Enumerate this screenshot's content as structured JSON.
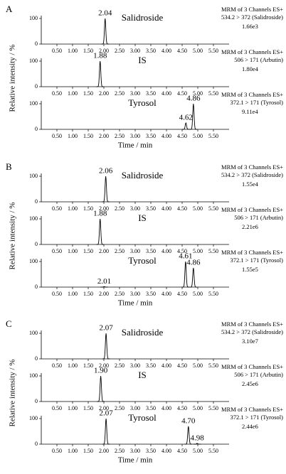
{
  "chart_data": [
    {
      "type": "chromatogram",
      "label": "A",
      "ylabel": "Relative intensity / %",
      "xlabel": "Time / min",
      "xlim": [
        0,
        6
      ],
      "xticks": [
        {
          "value": 0.5,
          "label": "0.50"
        },
        {
          "value": 1,
          "label": "1.00"
        },
        {
          "value": 1.5,
          "label": "1.50"
        },
        {
          "value": 2,
          "label": "2.00"
        },
        {
          "value": 2.5,
          "label": "2.50"
        },
        {
          "value": 3,
          "label": "3.00"
        },
        {
          "value": 3.5,
          "label": "3.50"
        },
        {
          "value": 4,
          "label": "4.00"
        },
        {
          "value": 4.5,
          "label": "4.50"
        },
        {
          "value": 5,
          "label": "5.00"
        },
        {
          "value": 5.5,
          "label": "5.50"
        }
      ],
      "traces": [
        {
          "name": "Salidroside",
          "info": [
            "MRM of 3 Channels ES+",
            "534.2 > 372 (Salidroside)",
            "1.66e3"
          ],
          "ylim": [
            0,
            100
          ],
          "yticks": [
            0,
            100
          ],
          "x": [
            {
              "value": 2.04,
              "label": "2.04"
            }
          ],
          "values": [
            100
          ]
        },
        {
          "name": "IS",
          "info": [
            "MRM of 3 Channels ES+",
            "506 > 171 (Arbutin)",
            "1.80e4"
          ],
          "ylim": [
            0,
            100
          ],
          "yticks": [
            0,
            100
          ],
          "x": [
            {
              "value": 1.88,
              "label": "1.88"
            }
          ],
          "values": [
            100
          ]
        },
        {
          "name": "Tyrosol",
          "info": [
            "MRM of 3 Channels ES+",
            "372.1 > 171 (Tyrosol)",
            "9.11e4"
          ],
          "ylim": [
            0,
            100
          ],
          "yticks": [
            0,
            100
          ],
          "x": [
            {
              "value": 4.62,
              "label": "4.62"
            },
            {
              "value": 4.86,
              "label": "4.86"
            }
          ],
          "values": [
            25,
            100
          ]
        }
      ]
    },
    {
      "type": "chromatogram",
      "label": "B",
      "ylabel": "Relative intensity / %",
      "xlabel": "Time / min",
      "xlim": [
        0,
        6
      ],
      "xticks": [
        {
          "value": 0.5,
          "label": "0.50"
        },
        {
          "value": 1,
          "label": "1.00"
        },
        {
          "value": 1.5,
          "label": "1.50"
        },
        {
          "value": 2,
          "label": "2.00"
        },
        {
          "value": 2.5,
          "label": "2.50"
        },
        {
          "value": 3,
          "label": "3.00"
        },
        {
          "value": 3.5,
          "label": "3.50"
        },
        {
          "value": 4,
          "label": "4.00"
        },
        {
          "value": 4.5,
          "label": "4.50"
        },
        {
          "value": 5,
          "label": "5.00"
        },
        {
          "value": 5.5,
          "label": "5.50"
        }
      ],
      "traces": [
        {
          "name": "Salidroside",
          "info": [
            "MRM of 3 Channels ES+",
            "534.2 > 372 (Salidroside)",
            "1.55e4"
          ],
          "ylim": [
            0,
            100
          ],
          "yticks": [
            0,
            100
          ],
          "x": [
            {
              "value": 2.06,
              "label": "2.06"
            }
          ],
          "values": [
            100
          ]
        },
        {
          "name": "IS",
          "info": [
            "MRM of 3 Channels ES+",
            "506 > 171 (Arbutin)",
            "2.21e6"
          ],
          "ylim": [
            0,
            100
          ],
          "yticks": [
            0,
            100
          ],
          "x": [
            {
              "value": 1.88,
              "label": "1.88"
            }
          ],
          "values": [
            100
          ]
        },
        {
          "name": "Tyrosol",
          "info": [
            "MRM of 3 Channels ES+",
            "372.1 > 171 (Tyrosol)",
            "1.55e5"
          ],
          "ylim": [
            0,
            100
          ],
          "yticks": [
            0,
            100
          ],
          "x": [
            {
              "value": 2.01,
              "label": "2.01"
            },
            {
              "value": 4.61,
              "label": "4.61"
            },
            {
              "value": 4.86,
              "label": "4.86"
            }
          ],
          "values": [
            2,
            100,
            75
          ]
        }
      ]
    },
    {
      "type": "chromatogram",
      "label": "C",
      "ylabel": "Relative intensity / %",
      "xlabel": "Time / min",
      "xlim": [
        0,
        6
      ],
      "xticks": [
        {
          "value": 0.5,
          "label": "0.50"
        },
        {
          "value": 1,
          "label": "1.00"
        },
        {
          "value": 1.5,
          "label": "1.50"
        },
        {
          "value": 2,
          "label": "2.00"
        },
        {
          "value": 2.5,
          "label": "2.50"
        },
        {
          "value": 3,
          "label": "3.00"
        },
        {
          "value": 3.5,
          "label": "3.50"
        },
        {
          "value": 4,
          "label": "4.00"
        },
        {
          "value": 4.5,
          "label": "4.50"
        },
        {
          "value": 5,
          "label": "5.00"
        },
        {
          "value": 5.5,
          "label": "5.50"
        }
      ],
      "traces": [
        {
          "name": "Salidroside",
          "info": [
            "MRM of 3 Channels ES+",
            "534.2 > 372 (Salidroside)",
            "3.10e7"
          ],
          "ylim": [
            0,
            100
          ],
          "yticks": [
            0,
            100
          ],
          "x": [
            {
              "value": 2.07,
              "label": "2.07"
            }
          ],
          "values": [
            100
          ]
        },
        {
          "name": "IS",
          "info": [
            "MRM of 3 Channels ES+",
            "506 > 171 (Arbutin)",
            "2.45e6"
          ],
          "ylim": [
            0,
            100
          ],
          "yticks": [
            0,
            100
          ],
          "x": [
            {
              "value": 1.9,
              "label": "1.90"
            }
          ],
          "values": [
            100
          ]
        },
        {
          "name": "Tyrosol",
          "info": [
            "MRM of 3 Channels ES+",
            "372.1 > 171 (Tyrosol)",
            "2.44e6"
          ],
          "ylim": [
            0,
            100
          ],
          "yticks": [
            0,
            100
          ],
          "x": [
            {
              "value": 2.07,
              "label": "2.07"
            },
            {
              "value": 4.7,
              "label": "4.70"
            },
            {
              "value": 4.98,
              "label": "4.98"
            }
          ],
          "values": [
            100,
            70,
            3
          ]
        }
      ]
    }
  ]
}
